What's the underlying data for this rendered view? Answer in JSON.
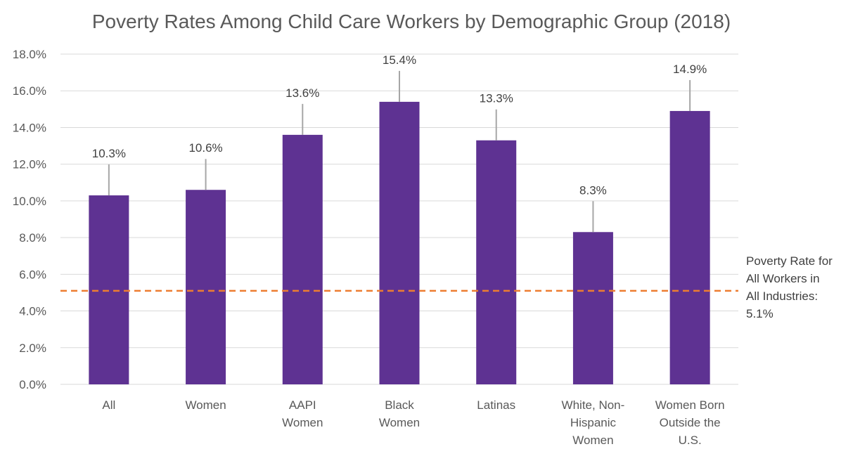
{
  "chart_data": {
    "type": "bar",
    "title": "Poverty Rates Among Child Care Workers by Demographic Group (2018)",
    "categories": [
      [
        "All"
      ],
      [
        "Women"
      ],
      [
        "AAPI",
        "Women"
      ],
      [
        "Black",
        "Women"
      ],
      [
        "Latinas"
      ],
      [
        "White, Non-",
        "Hispanic",
        "Women"
      ],
      [
        "Women Born",
        "Outside the",
        "U.S."
      ]
    ],
    "values": [
      10.3,
      10.6,
      13.6,
      15.4,
      13.3,
      8.3,
      14.9
    ],
    "data_labels": [
      "10.3%",
      "10.6%",
      "13.6%",
      "15.4%",
      "13.3%",
      "8.3%",
      "14.9%"
    ],
    "ylim": [
      0,
      18
    ],
    "yticks": [
      0,
      2,
      4,
      6,
      8,
      10,
      12,
      14,
      16,
      18
    ],
    "ytick_labels": [
      "0.0%",
      "2.0%",
      "4.0%",
      "6.0%",
      "8.0%",
      "10.0%",
      "12.0%",
      "14.0%",
      "16.0%",
      "18.0%"
    ],
    "grid": true,
    "reference_line": {
      "value": 5.1,
      "label_lines": [
        "Poverty Rate for",
        "All Workers in",
        "All Industries:",
        "5.1%"
      ],
      "color": "#ed7d31"
    },
    "bar_color": "#5e3292"
  }
}
